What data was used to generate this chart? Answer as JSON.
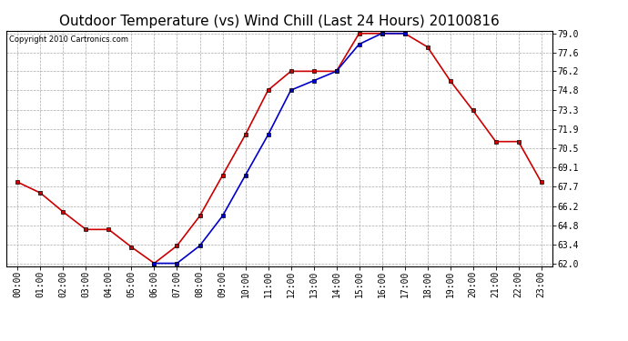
{
  "title": "Outdoor Temperature (vs) Wind Chill (Last 24 Hours) 20100816",
  "copyright": "Copyright 2010 Cartronics.com",
  "hours": [
    "00:00",
    "01:00",
    "02:00",
    "03:00",
    "04:00",
    "05:00",
    "06:00",
    "07:00",
    "08:00",
    "09:00",
    "10:00",
    "11:00",
    "12:00",
    "13:00",
    "14:00",
    "15:00",
    "16:00",
    "17:00",
    "18:00",
    "19:00",
    "20:00",
    "21:00",
    "22:00",
    "23:00"
  ],
  "outdoor_temp": [
    68.0,
    67.2,
    65.8,
    64.5,
    64.5,
    63.2,
    62.0,
    63.3,
    65.5,
    68.5,
    71.5,
    74.8,
    76.2,
    76.2,
    76.2,
    79.0,
    79.0,
    79.0,
    78.0,
    75.5,
    73.3,
    71.0,
    71.0,
    68.0
  ],
  "wind_chill": [
    null,
    null,
    null,
    null,
    null,
    null,
    62.0,
    62.0,
    63.3,
    65.5,
    68.5,
    71.5,
    74.8,
    75.5,
    76.2,
    78.2,
    79.0,
    79.0,
    null,
    null,
    null,
    null,
    null,
    null
  ],
  "temp_color": "#cc0000",
  "wind_color": "#0000cc",
  "marker": "s",
  "marker_size": 3,
  "bg_color": "#ffffff",
  "plot_bg_color": "#ffffff",
  "grid_color": "#aaaaaa",
  "ylim": [
    62.0,
    79.0
  ],
  "yticks": [
    62.0,
    63.4,
    64.8,
    66.2,
    67.7,
    69.1,
    70.5,
    71.9,
    73.3,
    74.8,
    76.2,
    77.6,
    79.0
  ],
  "title_fontsize": 11,
  "tick_fontsize": 7,
  "copyright_fontsize": 6
}
